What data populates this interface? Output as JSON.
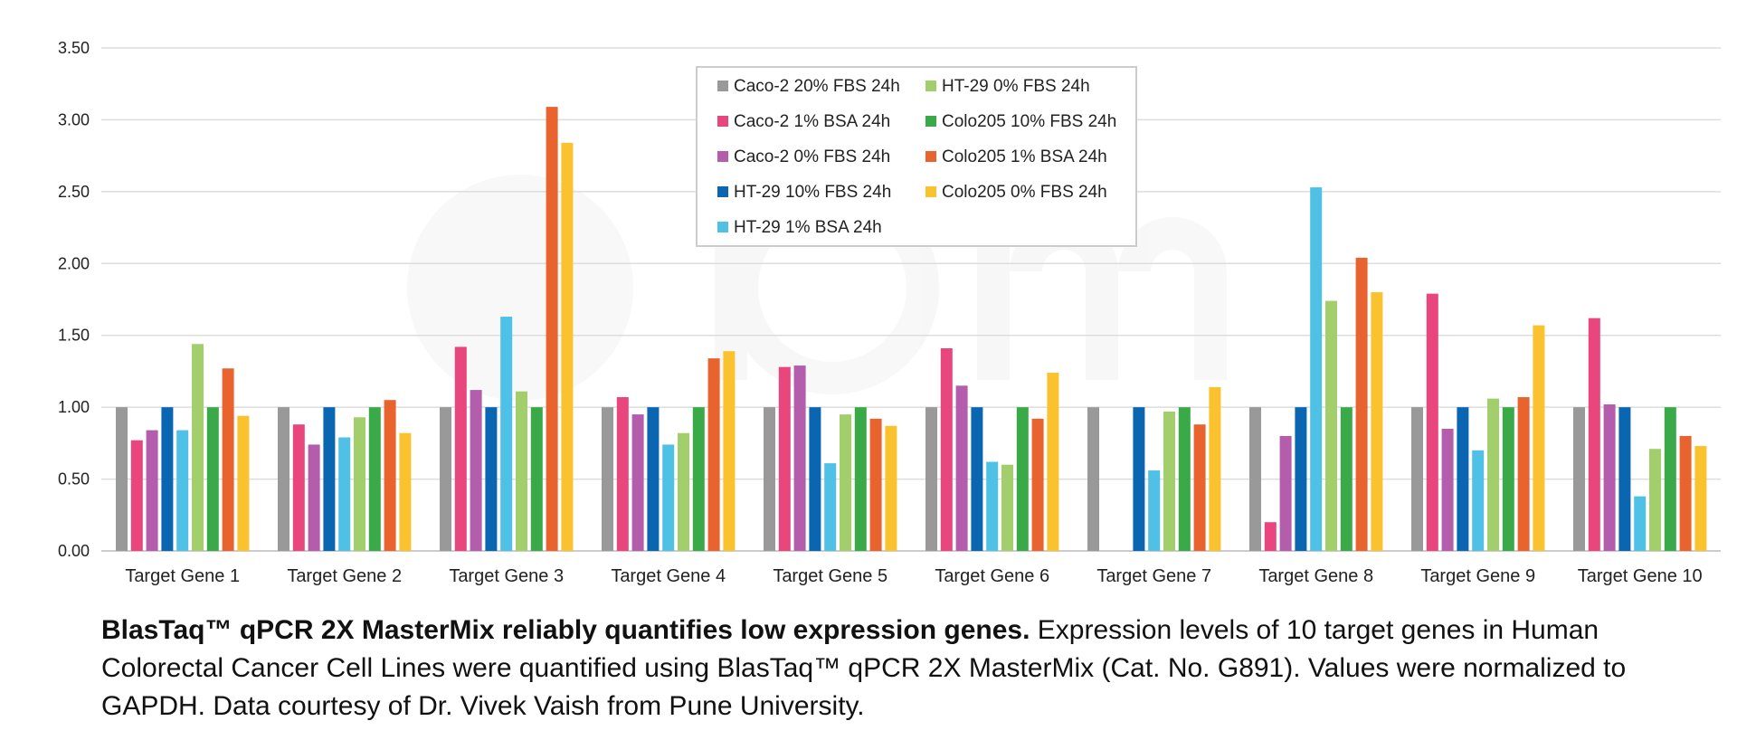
{
  "chart_data": {
    "type": "bar",
    "title": "",
    "xlabel": "",
    "ylabel": "",
    "ylim": [
      0,
      3.5
    ],
    "yticks": [
      "0.00",
      "0.50",
      "1.00",
      "1.50",
      "2.00",
      "2.50",
      "3.00",
      "3.50"
    ],
    "grid": true,
    "legend_position": "top-center",
    "categories": [
      "Target Gene 1",
      "Target Gene 2",
      "Target Gene 3",
      "Target Gene 4",
      "Target Gene 5",
      "Target Gene 6",
      "Target Gene 7",
      "Target Gene 8",
      "Target Gene 9",
      "Target Gene 10"
    ],
    "series": [
      {
        "name": "Caco-2 20% FBS 24h",
        "color": "#999999",
        "values": [
          1.0,
          1.0,
          1.0,
          1.0,
          1.0,
          1.0,
          1.0,
          1.0,
          1.0,
          1.0
        ]
      },
      {
        "name": "Caco-2 1% BSA 24h",
        "color": "#E8467C",
        "values": [
          0.77,
          0.88,
          1.42,
          1.07,
          1.28,
          1.41,
          0,
          0.2,
          1.79,
          1.62
        ]
      },
      {
        "name": "Caco-2 0% FBS 24h",
        "color": "#B45DAC",
        "values": [
          0.84,
          0.74,
          1.12,
          0.95,
          1.29,
          1.15,
          0,
          0.8,
          0.85,
          1.02
        ]
      },
      {
        "name": "HT-29 10% FBS 24h",
        "color": "#0B66B2",
        "values": [
          1.0,
          1.0,
          1.0,
          1.0,
          1.0,
          1.0,
          1.0,
          1.0,
          1.0,
          1.0
        ]
      },
      {
        "name": "HT-29 1% BSA 24h",
        "color": "#4FC1E7",
        "values": [
          0.84,
          0.79,
          1.63,
          0.74,
          0.61,
          0.62,
          0.56,
          2.53,
          0.7,
          0.38
        ]
      },
      {
        "name": "HT-29 0% FBS 24h",
        "color": "#A3CE6C",
        "values": [
          1.44,
          0.93,
          1.11,
          0.82,
          0.95,
          0.6,
          0.97,
          1.74,
          1.06,
          0.71
        ]
      },
      {
        "name": "Colo205 10% FBS 24h",
        "color": "#3AAA48",
        "values": [
          1.0,
          1.0,
          1.0,
          1.0,
          1.0,
          1.0,
          1.0,
          1.0,
          1.0,
          1.0
        ]
      },
      {
        "name": "Colo205 1% BSA 24h",
        "color": "#E8632D",
        "values": [
          1.27,
          1.05,
          3.09,
          1.34,
          0.92,
          0.92,
          0.88,
          2.04,
          1.07,
          0.8
        ]
      },
      {
        "name": "Colo205 0% FBS 24h",
        "color": "#FBC22F",
        "values": [
          0.94,
          0.82,
          2.84,
          1.39,
          0.87,
          1.24,
          1.14,
          1.8,
          1.57,
          0.73
        ]
      }
    ]
  },
  "caption": {
    "bold": "BlasTaq™ qPCR 2X MasterMix reliably quantifies low expression genes.",
    "text": " Expression levels of 10 target genes in Human Colorectal Cancer Cell Lines were quantified using BlasTaq™ qPCR 2X MasterMix (Cat. No. G891).  Values were normalized to GAPDH. Data courtesy of Dr. Vivek Vaish from Pune University."
  },
  "watermark": {
    "icon": "abm-logo-watermark"
  }
}
